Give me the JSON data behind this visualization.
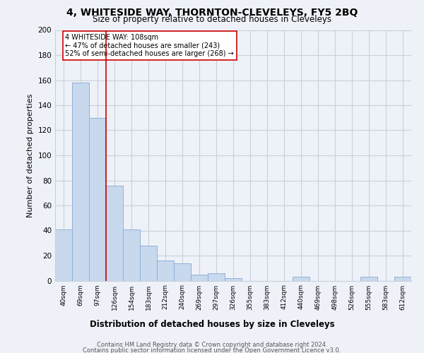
{
  "title": "4, WHITESIDE WAY, THORNTON-CLEVELEYS, FY5 2BQ",
  "subtitle": "Size of property relative to detached houses in Cleveleys",
  "xlabel": "Distribution of detached houses by size in Cleveleys",
  "ylabel": "Number of detached properties",
  "bar_labels": [
    "40sqm",
    "69sqm",
    "97sqm",
    "126sqm",
    "154sqm",
    "183sqm",
    "212sqm",
    "240sqm",
    "269sqm",
    "297sqm",
    "326sqm",
    "355sqm",
    "383sqm",
    "412sqm",
    "440sqm",
    "469sqm",
    "498sqm",
    "526sqm",
    "555sqm",
    "583sqm",
    "612sqm"
  ],
  "bar_values": [
    41,
    158,
    130,
    76,
    41,
    28,
    16,
    14,
    5,
    6,
    2,
    0,
    0,
    0,
    3,
    0,
    0,
    0,
    3,
    0,
    3
  ],
  "bar_color": "#c8d8ed",
  "bar_edge_color": "#8fb0d8",
  "vline_x": 2.5,
  "vline_color": "#cc0000",
  "ylim": [
    0,
    200
  ],
  "yticks": [
    0,
    20,
    40,
    60,
    80,
    100,
    120,
    140,
    160,
    180,
    200
  ],
  "annotation_text": "4 WHITESIDE WAY: 108sqm\n← 47% of detached houses are smaller (243)\n52% of semi-detached houses are larger (268) →",
  "annotation_box_color": "#ffffff",
  "annotation_box_edge": "#cc0000",
  "footer_line1": "Contains HM Land Registry data © Crown copyright and database right 2024.",
  "footer_line2": "Contains public sector information licensed under the Open Government Licence v3.0.",
  "background_color": "#eef2f8",
  "grid_color": "#c8d0dc"
}
